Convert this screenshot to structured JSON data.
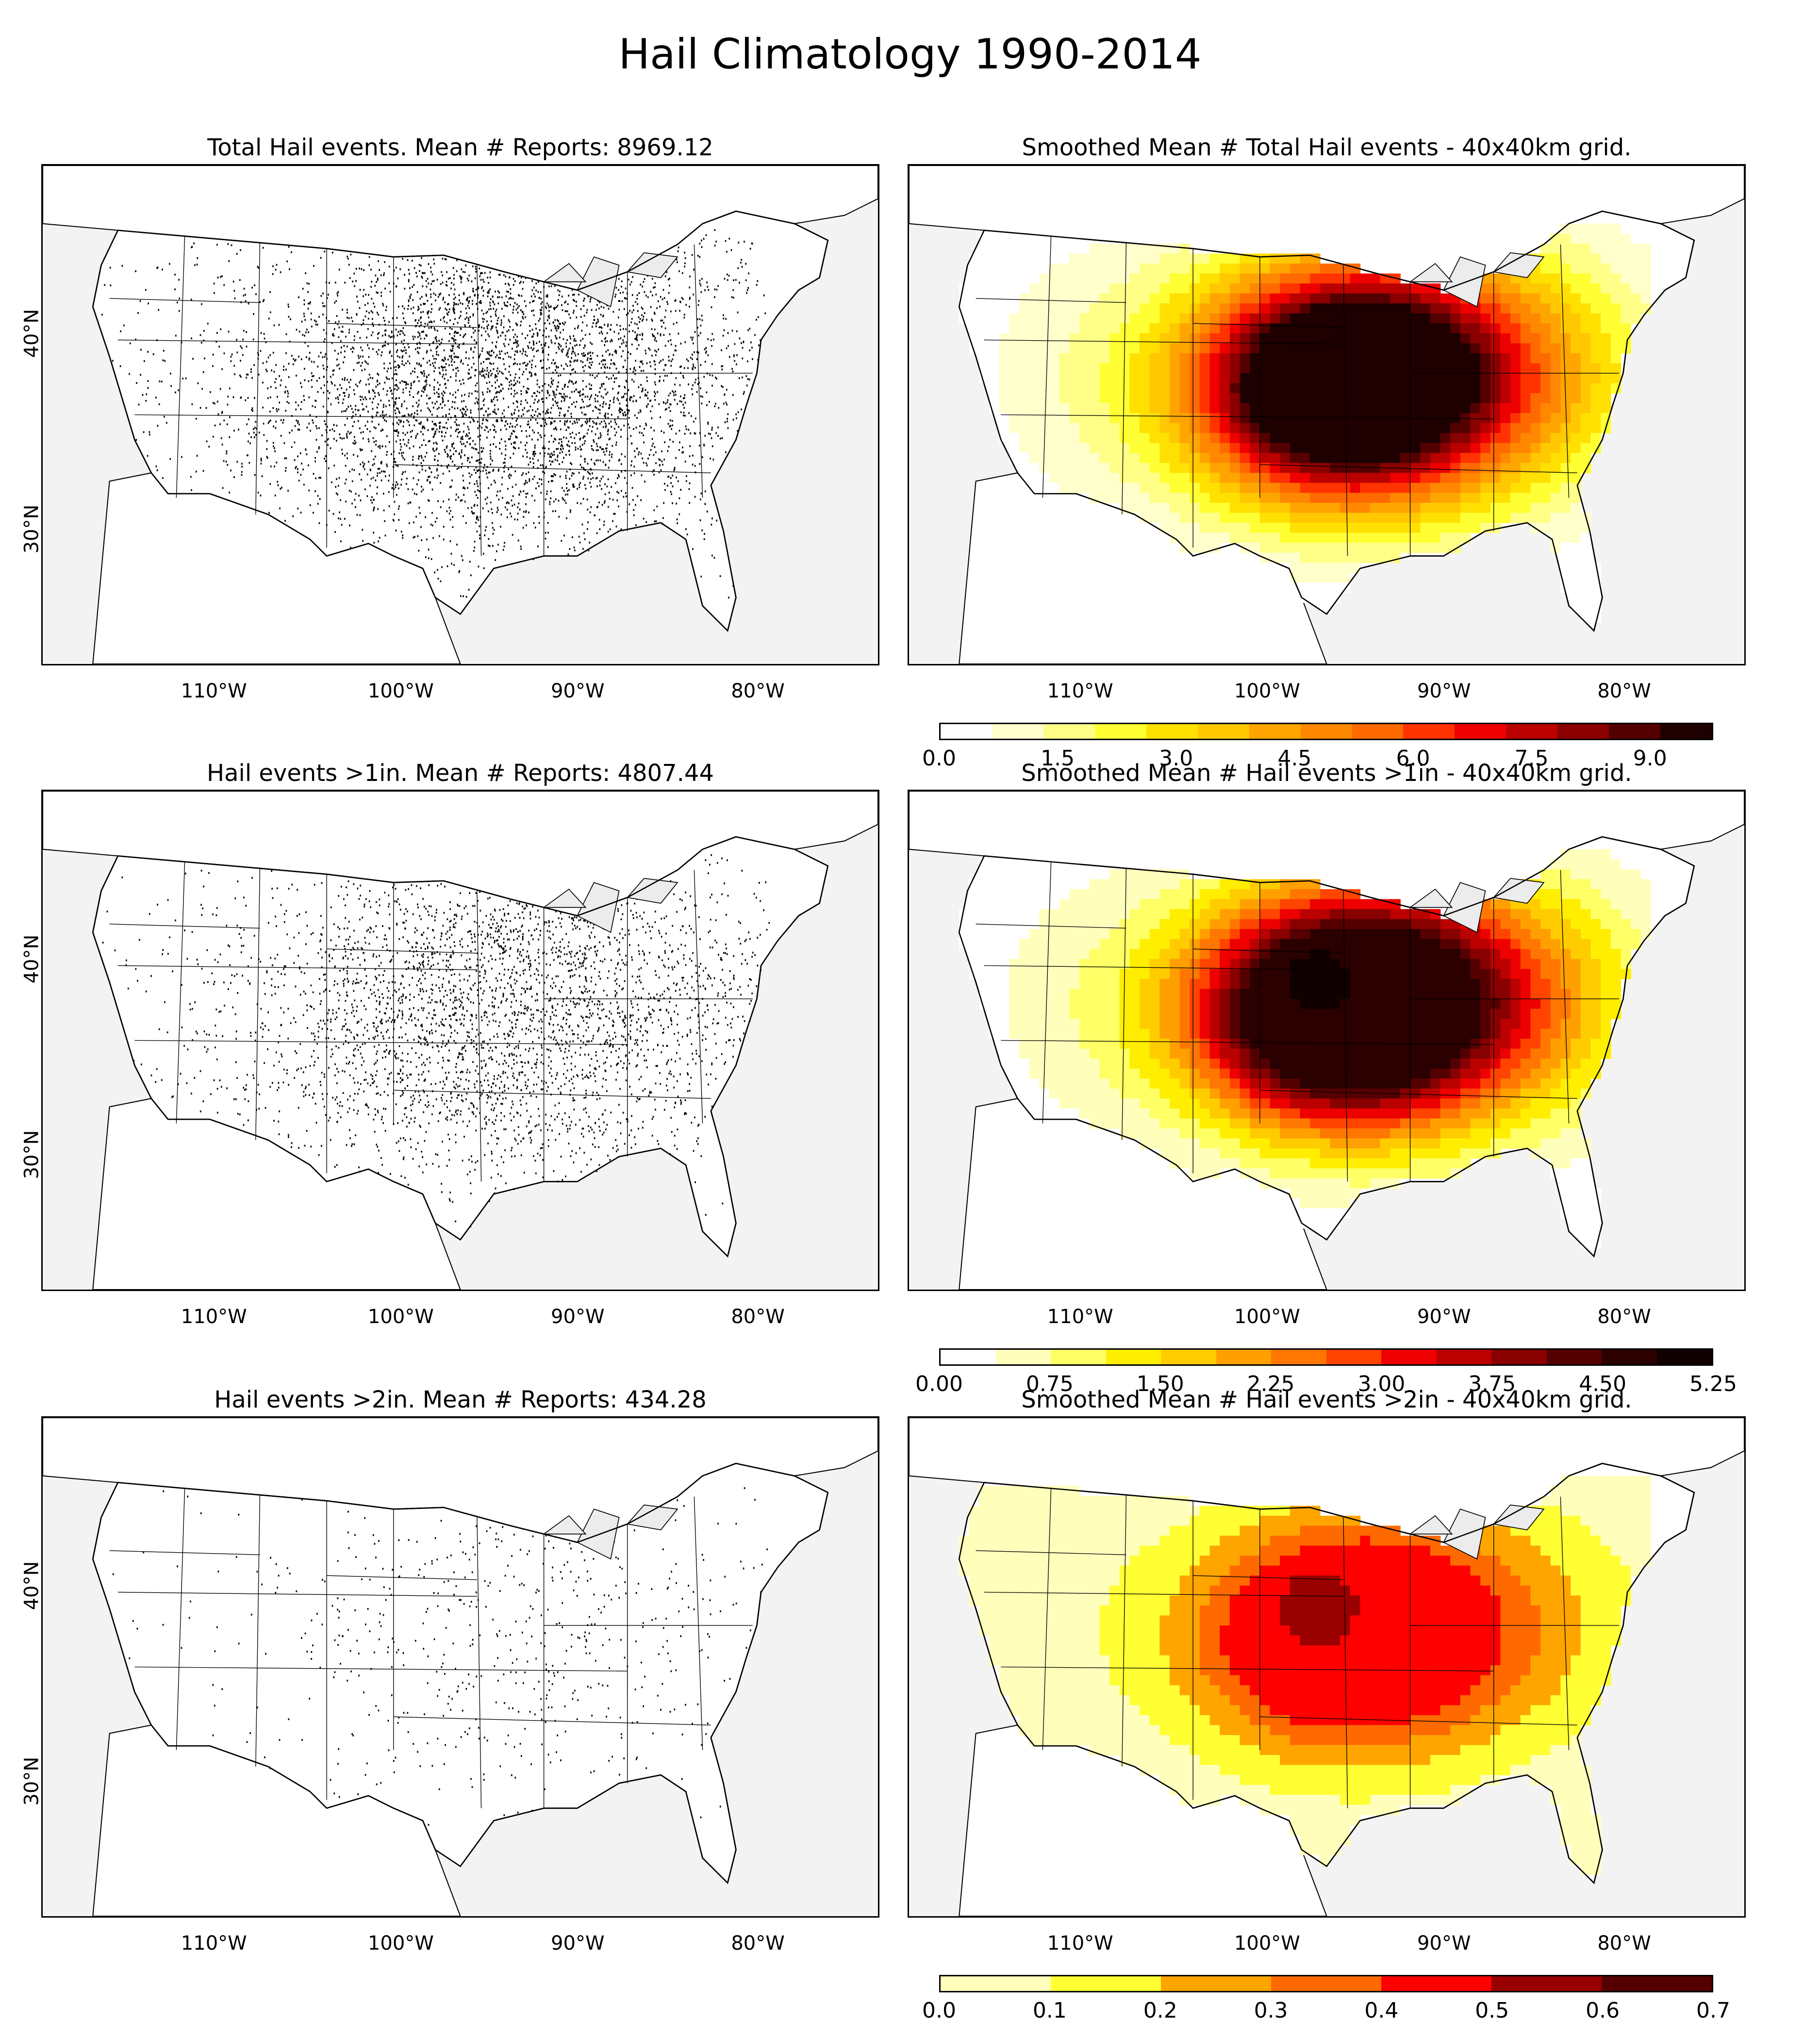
{
  "figure_title": "Hail Climatology 1990-2014",
  "panels": [
    {
      "title": "Total Hail events. Mean # Reports: 8969.12",
      "kind": "scatter",
      "density": 1.0
    },
    {
      "title": "Smoothed Mean # Total Hail events - 40x40km grid.",
      "kind": "contour",
      "scale": 1.0
    },
    {
      "title": "Hail events >1in. Mean # Reports: 4807.44",
      "kind": "scatter",
      "density": 0.7
    },
    {
      "title": "Smoothed Mean # Hail events >1in - 40x40km grid.",
      "kind": "contour",
      "scale": 0.95
    },
    {
      "title": "Hail events >2in. Mean # Reports: 434.28",
      "kind": "scatter",
      "density": 0.12
    },
    {
      "title": "Smoothed Mean # Hail events >2in - 40x40km grid.",
      "kind": "contour",
      "scale": 0.8
    }
  ],
  "lon_labels": [
    "110°W",
    "100°W",
    "90°W",
    "80°W"
  ],
  "lat_labels": [
    "40°N",
    "30°N"
  ],
  "colorbars": [
    {
      "ticks": [
        "0.0",
        "1.5",
        "3.0",
        "4.5",
        "6.0",
        "7.5",
        "9.0"
      ],
      "colors": [
        "#ffffff",
        "#ffffcc",
        "#ffff88",
        "#ffff33",
        "#ffe000",
        "#ffc800",
        "#ffa500",
        "#ff8800",
        "#ff6a00",
        "#ff3300",
        "#ee0000",
        "#bb0000",
        "#8a0000",
        "#550000",
        "#1e0000"
      ]
    },
    {
      "ticks": [
        "0.00",
        "0.75",
        "1.50",
        "2.25",
        "3.00",
        "3.75",
        "4.50",
        "5.25"
      ],
      "colors": [
        "#ffffff",
        "#ffffbb",
        "#ffff66",
        "#ffee00",
        "#ffcc00",
        "#ffa000",
        "#ff7700",
        "#ff4400",
        "#ee0000",
        "#bb0000",
        "#880000",
        "#550000",
        "#2a0000",
        "#100000"
      ]
    },
    {
      "ticks": [
        "0.0",
        "0.1",
        "0.2",
        "0.3",
        "0.4",
        "0.5",
        "0.6",
        "0.7"
      ],
      "colors": [
        "#ffffbb",
        "#ffff33",
        "#ffa500",
        "#ff6a00",
        "#ff0000",
        "#990000",
        "#550000"
      ]
    }
  ],
  "colors": {
    "land": "#ffffff",
    "ocean": "#f3f3f3",
    "dots": "#000000"
  }
}
